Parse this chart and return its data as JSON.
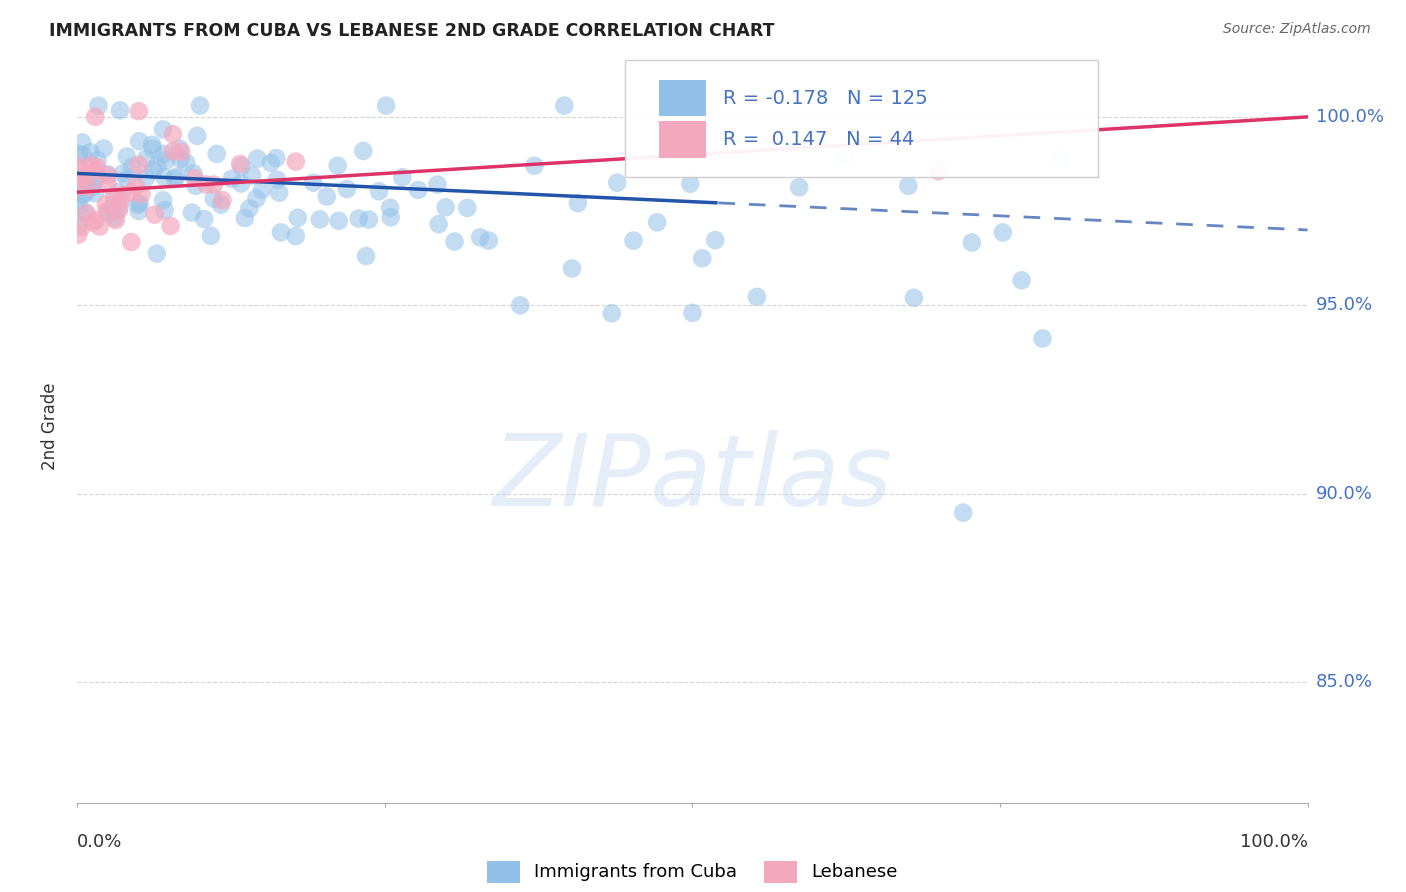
{
  "title": "IMMIGRANTS FROM CUBA VS LEBANESE 2ND GRADE CORRELATION CHART",
  "source": "Source: ZipAtlas.com",
  "ylabel": "2nd Grade",
  "legend_label_blue": "Immigrants from Cuba",
  "legend_label_pink": "Lebanese",
  "R_blue": -0.178,
  "N_blue": 125,
  "R_pink": 0.147,
  "N_pink": 44,
  "blue_color": "#92c0e8",
  "pink_color": "#f4a8be",
  "trend_blue": "#2255aa",
  "trend_pink": "#dd3366",
  "background": "#ffffff",
  "grid_color": "#cccccc",
  "y_ticks": [
    0.85,
    0.9,
    0.95,
    1.0
  ],
  "y_tick_labels": [
    "85.0%",
    "90.0%",
    "95.0%",
    "100.0%"
  ],
  "y_lim": [
    0.818,
    1.018
  ],
  "x_lim": [
    0.0,
    1.0
  ],
  "watermark": "ZIPatlas",
  "label_color": "#4472c4",
  "title_color": "#222222",
  "source_color": "#666666",
  "blue_seed": 101,
  "pink_seed": 55,
  "marker_size": 180,
  "trend_solid_end": 0.52,
  "blue_trend_y0": 0.985,
  "blue_trend_y1": 0.97,
  "pink_trend_y0": 0.98,
  "pink_trend_y1": 1.0
}
